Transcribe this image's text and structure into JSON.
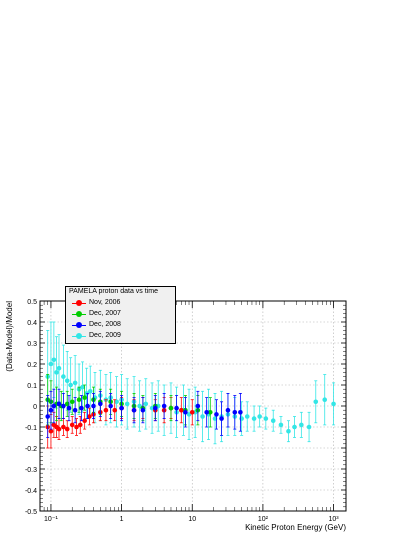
{
  "chart_data": {
    "type": "scatter",
    "title": "",
    "xlabel": "Kinetic Proton Energy (GeV)",
    "ylabel": "(Data-Model)/Model",
    "xscale": "log",
    "xlim": [
      0.07,
      1500
    ],
    "ylim": [
      -0.5,
      0.5
    ],
    "grid": true,
    "legend_title": "PAMELA proton data vs time",
    "legend_position": "top-left",
    "x_tick_labels": [
      "10⁻¹",
      "1",
      "10",
      "10²",
      "10³"
    ],
    "y_tick_labels": [
      "-0.5",
      "-0.4",
      "-0.3",
      "-0.2",
      "-0.1",
      "0",
      "0.1",
      "0.2",
      "0.3",
      "0.4",
      "0.5"
    ],
    "series": [
      {
        "name": "Nov, 2006",
        "color": "#ff0000",
        "points": [
          {
            "x": 0.09,
            "y": -0.1,
            "err": 0.1
          },
          {
            "x": 0.1,
            "y": -0.12,
            "err": 0.08
          },
          {
            "x": 0.11,
            "y": -0.09,
            "err": 0.06
          },
          {
            "x": 0.12,
            "y": -0.1,
            "err": 0.05
          },
          {
            "x": 0.13,
            "y": -0.11,
            "err": 0.05
          },
          {
            "x": 0.15,
            "y": -0.1,
            "err": 0.04
          },
          {
            "x": 0.17,
            "y": -0.11,
            "err": 0.04
          },
          {
            "x": 0.2,
            "y": -0.09,
            "err": 0.04
          },
          {
            "x": 0.23,
            "y": -0.1,
            "err": 0.04
          },
          {
            "x": 0.26,
            "y": -0.09,
            "err": 0.04
          },
          {
            "x": 0.3,
            "y": -0.07,
            "err": 0.04
          },
          {
            "x": 0.35,
            "y": -0.05,
            "err": 0.04
          },
          {
            "x": 0.4,
            "y": -0.04,
            "err": 0.04
          },
          {
            "x": 0.5,
            "y": -0.03,
            "err": 0.04
          },
          {
            "x": 0.6,
            "y": -0.02,
            "err": 0.05
          },
          {
            "x": 0.8,
            "y": -0.02,
            "err": 0.05
          },
          {
            "x": 1.0,
            "y": -0.01,
            "err": 0.05
          },
          {
            "x": 1.5,
            "y": -0.02,
            "err": 0.05
          },
          {
            "x": 2.0,
            "y": -0.01,
            "err": 0.05
          },
          {
            "x": 3.0,
            "y": -0.02,
            "err": 0.05
          },
          {
            "x": 4.0,
            "y": -0.02,
            "err": 0.06
          },
          {
            "x": 5.0,
            "y": -0.01,
            "err": 0.05
          },
          {
            "x": 7.0,
            "y": -0.02,
            "err": 0.06
          },
          {
            "x": 10.0,
            "y": -0.03,
            "err": 0.06
          }
        ]
      },
      {
        "name": "Dec, 2007",
        "color": "#00cc00",
        "points": [
          {
            "x": 0.09,
            "y": 0.03,
            "err": 0.12
          },
          {
            "x": 0.1,
            "y": 0.02,
            "err": 0.1
          },
          {
            "x": 0.12,
            "y": 0.01,
            "err": 0.08
          },
          {
            "x": 0.14,
            "y": 0.0,
            "err": 0.07
          },
          {
            "x": 0.17,
            "y": 0.01,
            "err": 0.06
          },
          {
            "x": 0.2,
            "y": 0.02,
            "err": 0.06
          },
          {
            "x": 0.25,
            "y": 0.03,
            "err": 0.06
          },
          {
            "x": 0.3,
            "y": 0.04,
            "err": 0.06
          },
          {
            "x": 0.4,
            "y": 0.03,
            "err": 0.06
          },
          {
            "x": 0.5,
            "y": 0.02,
            "err": 0.06
          },
          {
            "x": 0.7,
            "y": 0.02,
            "err": 0.06
          },
          {
            "x": 1.0,
            "y": 0.01,
            "err": 0.06
          },
          {
            "x": 1.5,
            "y": 0.0,
            "err": 0.06
          },
          {
            "x": 2.0,
            "y": -0.01,
            "err": 0.06
          },
          {
            "x": 3.0,
            "y": 0.0,
            "err": 0.06
          },
          {
            "x": 5.0,
            "y": -0.01,
            "err": 0.06
          },
          {
            "x": 8.0,
            "y": -0.02,
            "err": 0.07
          },
          {
            "x": 12.0,
            "y": -0.02,
            "err": 0.07
          },
          {
            "x": 18.0,
            "y": -0.03,
            "err": 0.07
          }
        ]
      },
      {
        "name": "Dec, 2008",
        "color": "#0000ff",
        "points": [
          {
            "x": 0.09,
            "y": -0.05,
            "err": 0.1
          },
          {
            "x": 0.1,
            "y": -0.02,
            "err": 0.09
          },
          {
            "x": 0.11,
            "y": 0.0,
            "err": 0.08
          },
          {
            "x": 0.13,
            "y": 0.01,
            "err": 0.07
          },
          {
            "x": 0.15,
            "y": 0.0,
            "err": 0.06
          },
          {
            "x": 0.18,
            "y": -0.01,
            "err": 0.06
          },
          {
            "x": 0.22,
            "y": -0.02,
            "err": 0.06
          },
          {
            "x": 0.27,
            "y": -0.01,
            "err": 0.06
          },
          {
            "x": 0.33,
            "y": 0.0,
            "err": 0.06
          },
          {
            "x": 0.4,
            "y": 0.0,
            "err": 0.06
          },
          {
            "x": 0.5,
            "y": 0.01,
            "err": 0.06
          },
          {
            "x": 0.7,
            "y": 0.0,
            "err": 0.06
          },
          {
            "x": 1.0,
            "y": -0.01,
            "err": 0.06
          },
          {
            "x": 1.5,
            "y": -0.02,
            "err": 0.06
          },
          {
            "x": 2.0,
            "y": -0.02,
            "err": 0.06
          },
          {
            "x": 3.0,
            "y": -0.01,
            "err": 0.06
          },
          {
            "x": 4.0,
            "y": 0.0,
            "err": 0.06
          },
          {
            "x": 6.0,
            "y": -0.01,
            "err": 0.06
          },
          {
            "x": 8.0,
            "y": -0.03,
            "err": 0.07
          },
          {
            "x": 12.0,
            "y": 0.0,
            "err": 0.07
          },
          {
            "x": 16.0,
            "y": -0.03,
            "err": 0.07
          },
          {
            "x": 22.0,
            "y": -0.04,
            "err": 0.07
          },
          {
            "x": 26.0,
            "y": -0.06,
            "err": 0.08
          },
          {
            "x": 32.0,
            "y": -0.02,
            "err": 0.08
          },
          {
            "x": 40.0,
            "y": -0.03,
            "err": 0.08
          },
          {
            "x": 48.0,
            "y": -0.03,
            "err": 0.09
          }
        ]
      },
      {
        "name": "Dec, 2009",
        "color": "#33e6e6",
        "points": [
          {
            "x": 0.09,
            "y": 0.14,
            "err": 0.22
          },
          {
            "x": 0.1,
            "y": 0.2,
            "err": 0.2
          },
          {
            "x": 0.11,
            "y": 0.22,
            "err": 0.18
          },
          {
            "x": 0.12,
            "y": 0.16,
            "err": 0.17
          },
          {
            "x": 0.13,
            "y": 0.18,
            "err": 0.16
          },
          {
            "x": 0.15,
            "y": 0.14,
            "err": 0.15
          },
          {
            "x": 0.17,
            "y": 0.12,
            "err": 0.14
          },
          {
            "x": 0.19,
            "y": 0.1,
            "err": 0.13
          },
          {
            "x": 0.22,
            "y": 0.11,
            "err": 0.13
          },
          {
            "x": 0.25,
            "y": 0.08,
            "err": 0.12
          },
          {
            "x": 0.28,
            "y": 0.09,
            "err": 0.12
          },
          {
            "x": 0.32,
            "y": 0.06,
            "err": 0.12
          },
          {
            "x": 0.36,
            "y": 0.07,
            "err": 0.12
          },
          {
            "x": 0.42,
            "y": 0.04,
            "err": 0.12
          },
          {
            "x": 0.5,
            "y": 0.05,
            "err": 0.12
          },
          {
            "x": 0.6,
            "y": 0.03,
            "err": 0.12
          },
          {
            "x": 0.7,
            "y": 0.04,
            "err": 0.12
          },
          {
            "x": 0.85,
            "y": 0.02,
            "err": 0.12
          },
          {
            "x": 1.0,
            "y": 0.03,
            "err": 0.12
          },
          {
            "x": 1.2,
            "y": 0.01,
            "err": 0.12
          },
          {
            "x": 1.5,
            "y": 0.02,
            "err": 0.12
          },
          {
            "x": 1.8,
            "y": 0.0,
            "err": 0.12
          },
          {
            "x": 2.2,
            "y": 0.01,
            "err": 0.12
          },
          {
            "x": 2.7,
            "y": -0.01,
            "err": 0.12
          },
          {
            "x": 3.3,
            "y": 0.0,
            "err": 0.12
          },
          {
            "x": 4.0,
            "y": -0.02,
            "err": 0.12
          },
          {
            "x": 5.0,
            "y": -0.01,
            "err": 0.12
          },
          {
            "x": 6.0,
            "y": -0.03,
            "err": 0.12
          },
          {
            "x": 7.5,
            "y": -0.02,
            "err": 0.12
          },
          {
            "x": 9.0,
            "y": -0.04,
            "err": 0.12
          },
          {
            "x": 11.0,
            "y": -0.03,
            "err": 0.12
          },
          {
            "x": 14.0,
            "y": -0.05,
            "err": 0.12
          },
          {
            "x": 17.0,
            "y": -0.04,
            "err": 0.12
          },
          {
            "x": 21.0,
            "y": -0.06,
            "err": 0.12
          },
          {
            "x": 26.0,
            "y": -0.05,
            "err": 0.12
          },
          {
            "x": 32.0,
            "y": -0.04,
            "err": 0.1
          },
          {
            "x": 40.0,
            "y": -0.05,
            "err": 0.09
          },
          {
            "x": 50.0,
            "y": -0.06,
            "err": 0.08
          },
          {
            "x": 60.0,
            "y": -0.05,
            "err": 0.07
          },
          {
            "x": 75.0,
            "y": -0.06,
            "err": 0.06
          },
          {
            "x": 90.0,
            "y": -0.05,
            "err": 0.05
          },
          {
            "x": 110.0,
            "y": -0.06,
            "err": 0.05
          },
          {
            "x": 140.0,
            "y": -0.07,
            "err": 0.05
          },
          {
            "x": 180.0,
            "y": -0.09,
            "err": 0.04
          },
          {
            "x": 230.0,
            "y": -0.12,
            "err": 0.05
          },
          {
            "x": 280.0,
            "y": -0.1,
            "err": 0.05
          },
          {
            "x": 350.0,
            "y": -0.09,
            "err": 0.06
          },
          {
            "x": 450.0,
            "y": -0.1,
            "err": 0.07
          },
          {
            "x": 560.0,
            "y": 0.02,
            "err": 0.1
          },
          {
            "x": 750.0,
            "y": 0.03,
            "err": 0.12
          },
          {
            "x": 1000.0,
            "y": 0.01,
            "err": 0.1
          }
        ]
      }
    ]
  }
}
